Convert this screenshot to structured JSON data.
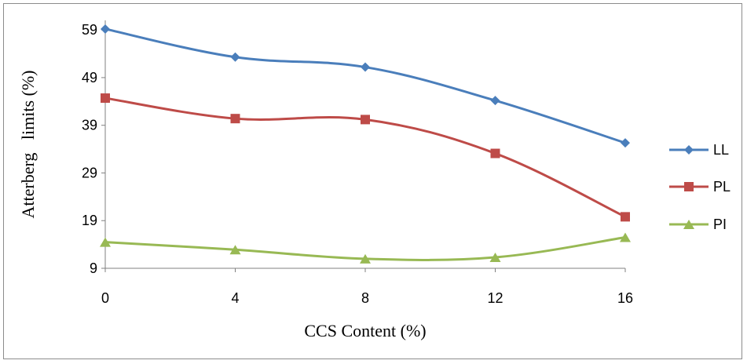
{
  "chart_data": {
    "type": "line",
    "x": [
      0,
      4,
      8,
      12,
      16
    ],
    "xlabel": "CCS Content (%)",
    "ylabel": "Atterberg   limits (%)",
    "yticks": [
      9,
      19,
      29,
      39,
      49,
      59
    ],
    "xticks": [
      0,
      4,
      8,
      12,
      16
    ],
    "ylim": [
      9,
      61
    ],
    "xlim": [
      0,
      16
    ],
    "grid": false,
    "legend_position": "right",
    "series": [
      {
        "name": "LL",
        "color": "#4a7ebb",
        "marker": "diamond",
        "values": [
          59.2,
          53.3,
          51.2,
          44.2,
          35.3
        ]
      },
      {
        "name": "PL",
        "color": "#be4b48",
        "marker": "square",
        "values": [
          44.7,
          40.4,
          40.2,
          33.1,
          19.8
        ]
      },
      {
        "name": "PI",
        "color": "#98b954",
        "marker": "triangle",
        "values": [
          14.5,
          12.9,
          11.0,
          11.3,
          15.5
        ]
      }
    ]
  }
}
